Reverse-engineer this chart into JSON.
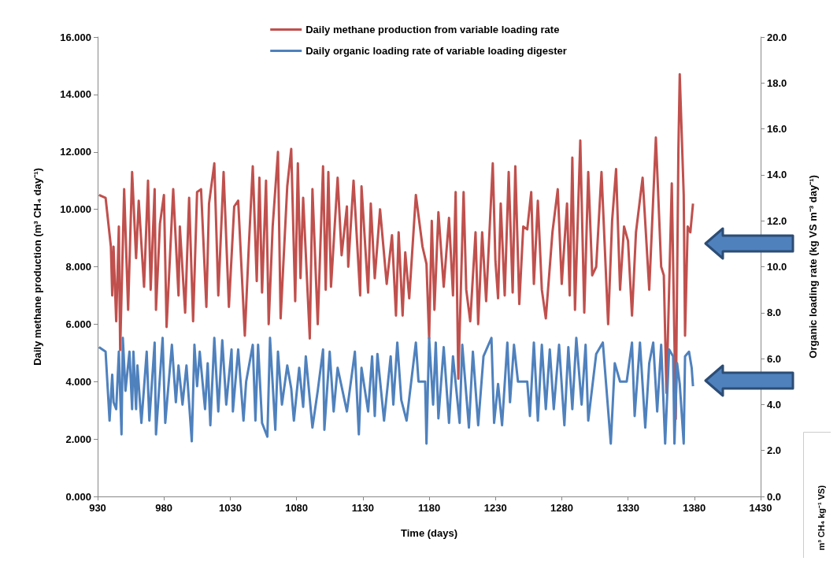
{
  "chart_data": {
    "type": "line",
    "xlabel": "Time (days)",
    "ylabel": "Daily methane production (m³ CH₄ day⁻¹)",
    "y2label": "Organic loading rate (kg VS m⁻³ day⁻¹)",
    "annotations": [
      "m³ CH₄ kg⁻¹ VS)"
    ],
    "xlim": [
      930,
      1430
    ],
    "xticks": [
      930,
      980,
      1030,
      1080,
      1130,
      1180,
      1230,
      1280,
      1330,
      1380,
      1430
    ],
    "ylim": [
      0,
      16
    ],
    "yticks": [
      {
        "value": 0,
        "label": "0.000"
      },
      {
        "value": 2,
        "label": "2.000"
      },
      {
        "value": 4,
        "label": "4.000"
      },
      {
        "value": 6,
        "label": "6.000"
      },
      {
        "value": 8,
        "label": "8.000"
      },
      {
        "value": 10,
        "label": "10.000"
      },
      {
        "value": 12,
        "label": "12.000"
      },
      {
        "value": 14,
        "label": "14.000"
      },
      {
        "value": 16,
        "label": "16.000"
      }
    ],
    "y2lim": [
      0,
      20
    ],
    "y2ticks": [
      {
        "value": 0,
        "label": "0.0"
      },
      {
        "value": 2,
        "label": "2.0"
      },
      {
        "value": 4,
        "label": "4.0"
      },
      {
        "value": 6,
        "label": "6.0"
      },
      {
        "value": 8,
        "label": "8.0"
      },
      {
        "value": 10,
        "label": "10.0"
      },
      {
        "value": 12,
        "label": "12.0"
      },
      {
        "value": 14,
        "label": "14.0"
      },
      {
        "value": 16,
        "label": "16.0"
      },
      {
        "value": 18,
        "label": "18.0"
      },
      {
        "value": 20,
        "label": "20.0"
      }
    ],
    "grid": false,
    "legend": "top",
    "marker": "none",
    "line_style": "solid",
    "series": [
      {
        "name": "Daily methane production from variable loading rate",
        "color": "#c0504d",
        "x": [
          931,
          936,
          940,
          941,
          942,
          944,
          946,
          947,
          950,
          953,
          956,
          959,
          961,
          965,
          968,
          970,
          973,
          974,
          977,
          980,
          982,
          987,
          991,
          992,
          996,
          999,
          1002,
          1005,
          1008,
          1012,
          1014,
          1018,
          1021,
          1025,
          1029,
          1033,
          1036,
          1041,
          1044,
          1047,
          1050,
          1052,
          1054,
          1057,
          1059,
          1062,
          1066,
          1068,
          1073,
          1076,
          1079,
          1081,
          1083,
          1085,
          1090,
          1092,
          1096,
          1100,
          1102,
          1104,
          1106,
          1111,
          1114,
          1118,
          1119,
          1123,
          1128,
          1129,
          1134,
          1136,
          1139,
          1143,
          1148,
          1152,
          1155,
          1157,
          1160,
          1162,
          1165,
          1170,
          1175,
          1178,
          1180,
          1182,
          1184,
          1187,
          1191,
          1195,
          1198,
          1200,
          1202,
          1206,
          1208,
          1211,
          1215,
          1217,
          1220,
          1223,
          1228,
          1230,
          1232,
          1234,
          1237,
          1240,
          1243,
          1245,
          1248,
          1251,
          1254,
          1257,
          1259,
          1262,
          1265,
          1268,
          1273,
          1277,
          1280,
          1284,
          1286,
          1288,
          1290,
          1294,
          1297,
          1300,
          1303,
          1306,
          1310,
          1315,
          1318,
          1321,
          1324,
          1327,
          1330,
          1333,
          1336,
          1341,
          1346,
          1351,
          1355,
          1357,
          1359,
          1363,
          1366,
          1368,
          1369,
          1372,
          1373,
          1375,
          1377,
          1379
        ],
        "values": [
          10.5,
          10.4,
          8.7,
          7.0,
          8.7,
          6.1,
          9.4,
          5.1,
          10.7,
          6.5,
          11.3,
          8.3,
          10.3,
          7.3,
          11.0,
          7.2,
          10.7,
          6.5,
          9.5,
          10.5,
          5.9,
          10.7,
          7.0,
          9.4,
          6.4,
          10.4,
          6.1,
          10.6,
          10.7,
          6.6,
          10.2,
          11.6,
          7.0,
          11.3,
          6.6,
          10.1,
          10.3,
          5.6,
          8.7,
          11.5,
          7.5,
          11.1,
          7.1,
          11.0,
          6.0,
          9.4,
          12.0,
          6.2,
          10.8,
          12.1,
          6.8,
          11.6,
          7.6,
          10.4,
          5.5,
          10.7,
          6.0,
          11.5,
          7.2,
          11.3,
          7.3,
          11.1,
          8.4,
          10.1,
          8.0,
          11.0,
          7.0,
          10.8,
          7.1,
          10.2,
          7.6,
          10.0,
          7.4,
          9.1,
          6.3,
          9.2,
          6.3,
          8.5,
          6.9,
          10.5,
          8.7,
          8.1,
          5.5,
          9.6,
          6.5,
          9.9,
          7.3,
          9.7,
          7.0,
          10.6,
          4.1,
          10.6,
          7.2,
          6.1,
          9.2,
          6.0,
          9.2,
          6.8,
          11.6,
          8.2,
          6.9,
          10.2,
          7.0,
          11.3,
          7.1,
          11.5,
          6.7,
          9.4,
          9.3,
          10.6,
          7.4,
          10.3,
          7.2,
          6.2,
          9.2,
          10.7,
          7.4,
          10.2,
          7.0,
          11.8,
          6.5,
          12.4,
          6.4,
          11.3,
          7.7,
          8.0,
          11.3,
          6.0,
          9.6,
          11.4,
          7.2,
          9.4,
          8.9,
          6.3,
          9.2,
          11.1,
          7.2,
          12.5,
          8.0,
          7.7,
          3.6,
          10.9,
          2.7,
          12.1,
          14.7,
          10.5,
          5.6,
          9.4,
          9.2,
          10.2
        ]
      },
      {
        "name": "Daily organic loading rate of variable loading digester",
        "color": "#4f81bd",
        "axis": "y2",
        "x": [
          931,
          936,
          939,
          941,
          942,
          944,
          946,
          948,
          949,
          951,
          954,
          956,
          957,
          959,
          960,
          963,
          967,
          969,
          973,
          974,
          979,
          981,
          986,
          989,
          991,
          994,
          997,
          1001,
          1003,
          1005,
          1007,
          1011,
          1013,
          1015,
          1018,
          1021,
          1024,
          1027,
          1031,
          1032,
          1036,
          1040,
          1042,
          1047,
          1049,
          1051,
          1054,
          1058,
          1060,
          1064,
          1066,
          1069,
          1073,
          1076,
          1078,
          1082,
          1085,
          1087,
          1092,
          1096,
          1100,
          1101,
          1105,
          1108,
          1111,
          1118,
          1124,
          1127,
          1129,
          1134,
          1137,
          1139,
          1141,
          1146,
          1151,
          1153,
          1156,
          1159,
          1163,
          1170,
          1172,
          1177,
          1178,
          1180,
          1183,
          1185,
          1187,
          1191,
          1195,
          1198,
          1203,
          1205,
          1210,
          1213,
          1217,
          1221,
          1227,
          1229,
          1232,
          1235,
          1239,
          1241,
          1244,
          1247,
          1254,
          1256,
          1259,
          1262,
          1265,
          1268,
          1271,
          1274,
          1278,
          1282,
          1285,
          1288,
          1291,
          1295,
          1298,
          1300,
          1306,
          1311,
          1317,
          1320,
          1324,
          1329,
          1333,
          1335,
          1339,
          1343,
          1346,
          1349,
          1352,
          1355,
          1358,
          1361,
          1364,
          1365,
          1367,
          1369,
          1372,
          1373,
          1376,
          1378,
          1379
        ],
        "values": [
          6.5,
          6.3,
          3.3,
          5.3,
          4.1,
          3.8,
          6.3,
          2.7,
          6.9,
          4.6,
          6.3,
          3.8,
          6.3,
          3.8,
          5.7,
          3.2,
          6.3,
          3.3,
          6.7,
          2.7,
          6.9,
          3.2,
          6.6,
          4.1,
          5.7,
          4.0,
          5.7,
          2.4,
          6.6,
          4.8,
          6.3,
          3.8,
          5.8,
          3.1,
          6.9,
          3.7,
          6.8,
          4.0,
          6.4,
          3.7,
          6.4,
          3.3,
          5.0,
          6.6,
          3.3,
          6.6,
          3.2,
          2.6,
          6.9,
          2.9,
          6.3,
          4.0,
          5.7,
          4.7,
          3.3,
          5.6,
          3.9,
          6.1,
          3.0,
          4.6,
          6.4,
          2.9,
          6.3,
          3.7,
          5.6,
          3.7,
          6.3,
          2.7,
          5.6,
          3.7,
          6.1,
          3.5,
          6.2,
          3.3,
          6.1,
          4.0,
          6.7,
          4.2,
          3.3,
          6.7,
          5.0,
          5.0,
          2.3,
          6.9,
          4.0,
          6.7,
          3.4,
          6.5,
          3.2,
          6.1,
          3.2,
          6.6,
          3.0,
          6.3,
          3.1,
          6.1,
          6.9,
          3.2,
          4.9,
          3.1,
          6.7,
          4.1,
          6.6,
          5.0,
          5.0,
          3.5,
          6.7,
          3.3,
          6.6,
          3.8,
          6.4,
          3.8,
          6.6,
          3.1,
          6.5,
          3.8,
          6.9,
          4.0,
          6.6,
          3.3,
          6.2,
          6.7,
          2.3,
          5.8,
          5.0,
          5.0,
          6.7,
          3.5,
          6.7,
          3.0,
          5.8,
          6.7,
          3.7,
          6.6,
          2.3,
          6.4,
          6.1,
          2.3,
          5.8,
          4.9,
          2.3,
          6.1,
          6.3,
          5.6,
          4.8
        ]
      }
    ]
  }
}
